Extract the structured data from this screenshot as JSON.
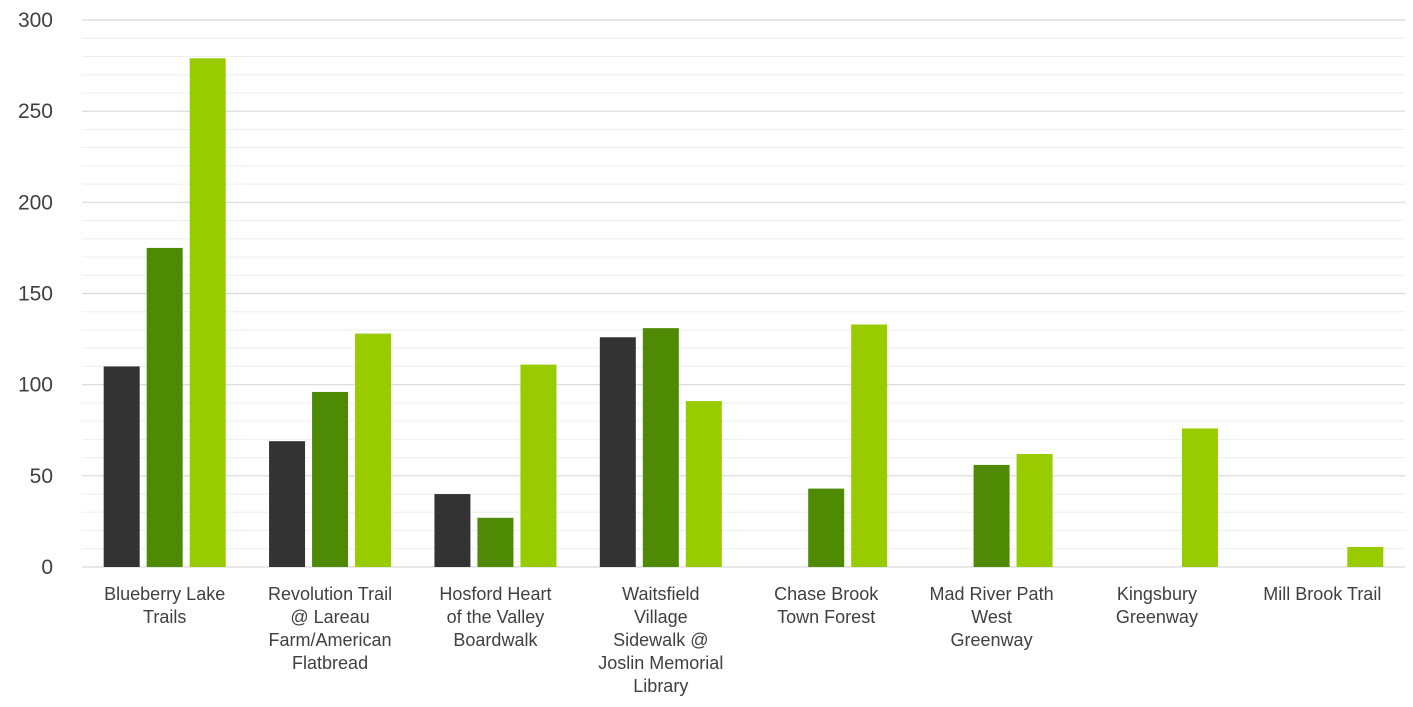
{
  "chart_data": {
    "type": "bar",
    "title": "",
    "xlabel": "",
    "ylabel": "",
    "ylim": [
      0,
      300
    ],
    "y_ticks": [
      0,
      50,
      100,
      150,
      200,
      250,
      300
    ],
    "minor_grid_step": 10,
    "grid": true,
    "legend": "none",
    "categories": [
      [
        "Blueberry Lake",
        "Trails"
      ],
      [
        "Revolution Trail",
        "@ Lareau",
        "Farm/American",
        "Flatbread"
      ],
      [
        "Hosford Heart",
        "of the Valley",
        "Boardwalk"
      ],
      [
        "Waitsfield",
        "Village",
        "Sidewalk @",
        "Joslin Memorial",
        "Library"
      ],
      [
        "Chase Brook",
        "Town Forest"
      ],
      [
        "Mad River Path",
        "West",
        "Greenway"
      ],
      [
        "Kingsbury",
        "Greenway"
      ],
      [
        "Mill Brook Trail"
      ]
    ],
    "series": [
      {
        "color": "#333333",
        "values": [
          110,
          69,
          40,
          126,
          null,
          null,
          null,
          null
        ]
      },
      {
        "color": "#4e8a04",
        "values": [
          175,
          96,
          27,
          131,
          43,
          56,
          null,
          null
        ]
      },
      {
        "color": "#99cc00",
        "values": [
          279,
          128,
          111,
          91,
          133,
          62,
          76,
          11
        ]
      }
    ]
  }
}
